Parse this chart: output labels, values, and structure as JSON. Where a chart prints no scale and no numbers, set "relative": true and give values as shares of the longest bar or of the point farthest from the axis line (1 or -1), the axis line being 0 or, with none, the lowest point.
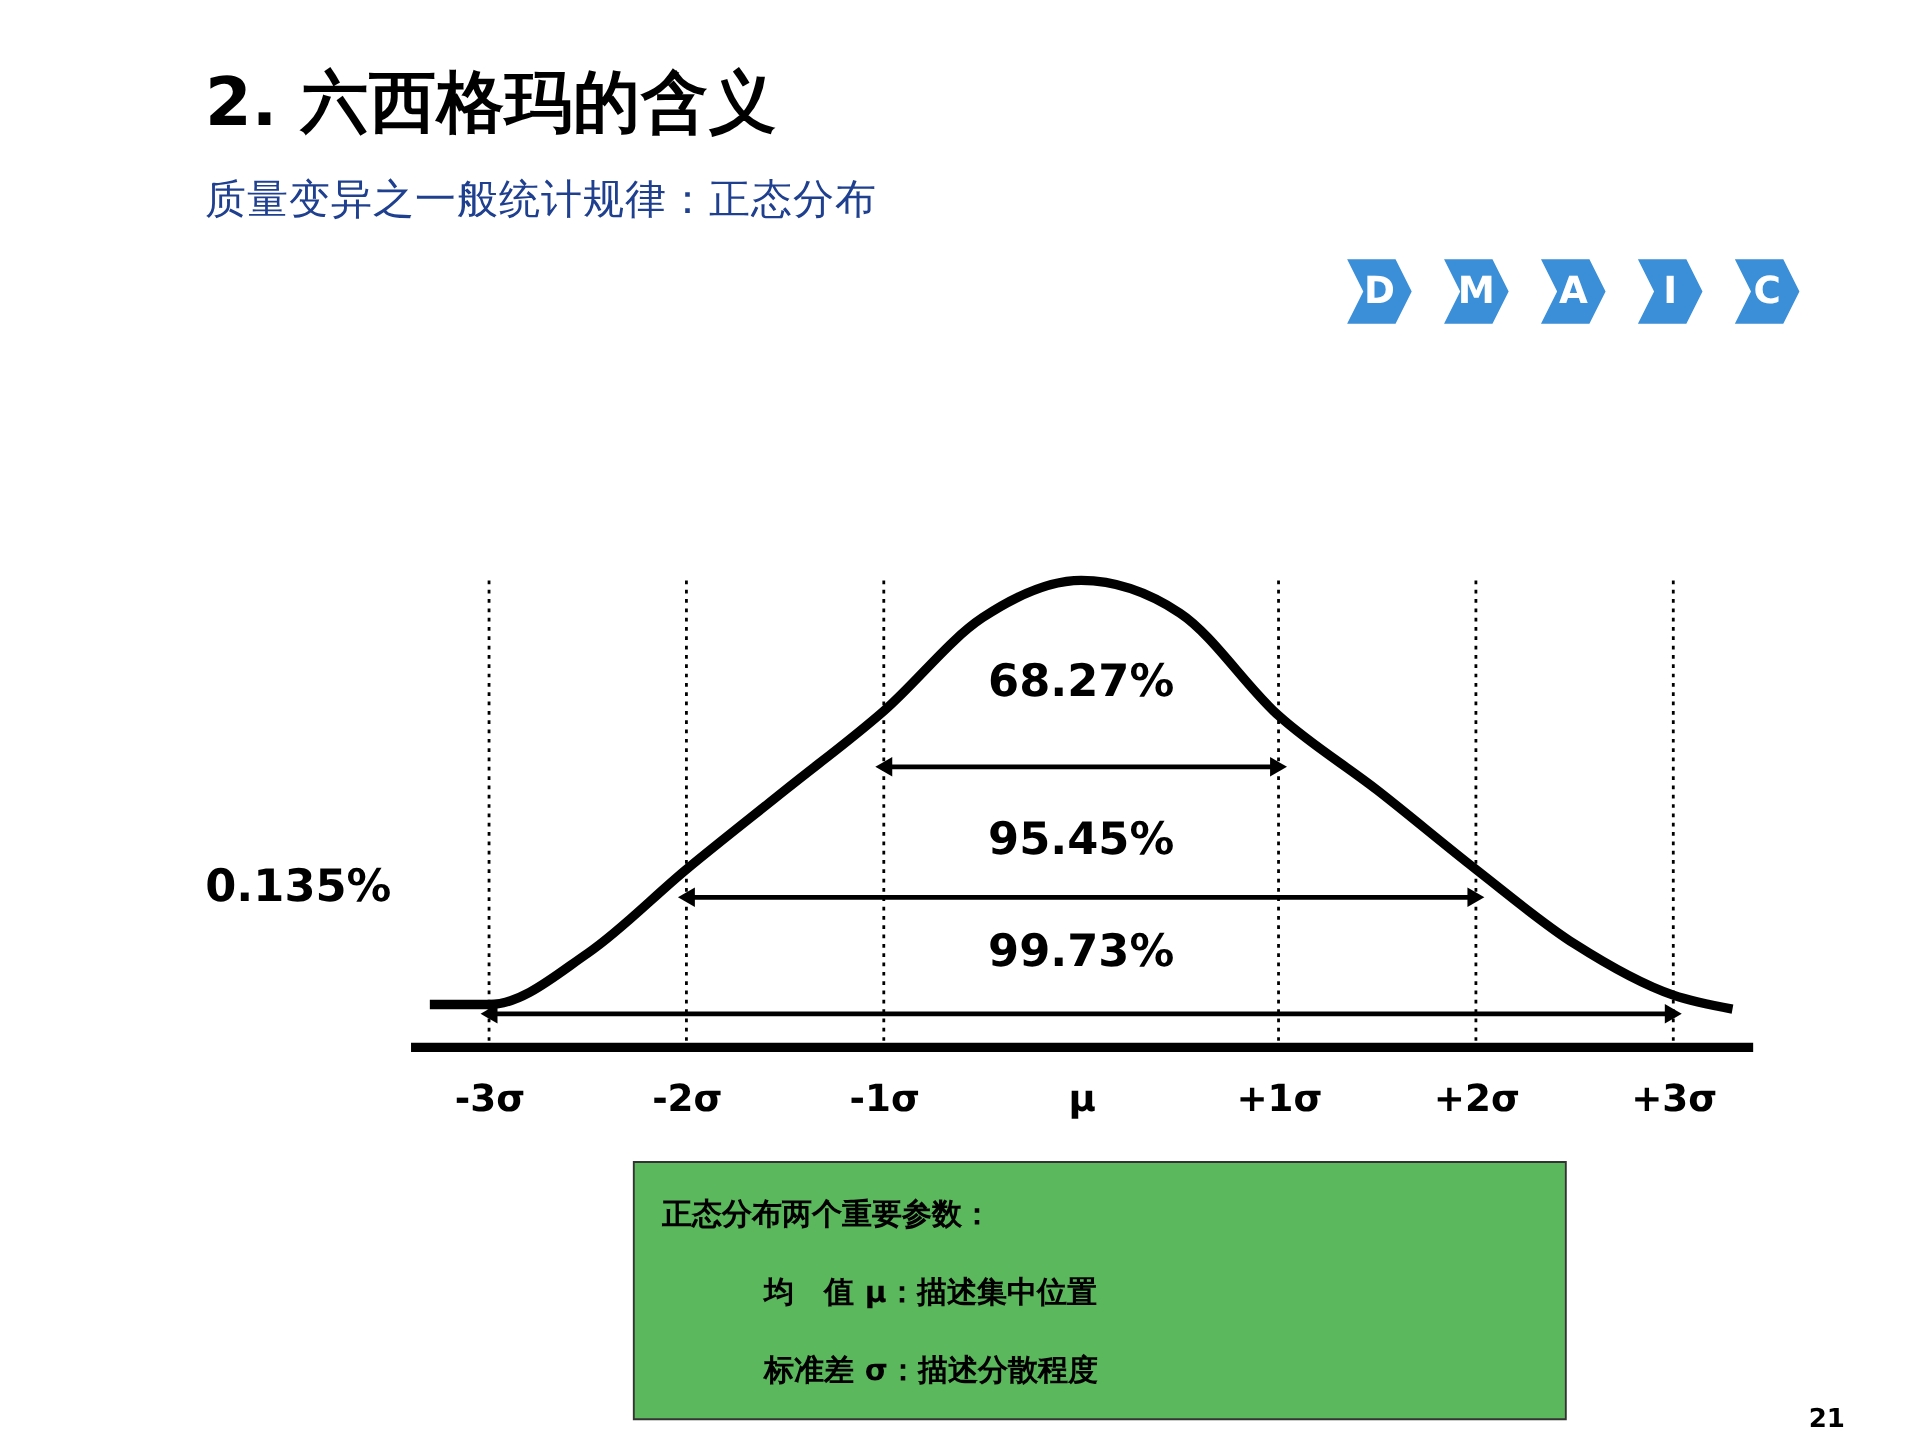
{
  "chart_data": {
    "type": "line",
    "title": "2.  六西格玛的含义",
    "subtitle": "质量变异之一般统计规律：正态分布",
    "relative": true,
    "x": [
      -3.3,
      -3,
      -2.5,
      -2,
      -1.5,
      -1,
      -0.5,
      0,
      0.5,
      1,
      1.5,
      2,
      2.5,
      3,
      3.3
    ],
    "series": [
      {
        "color": "#000000",
        "values": [
          0.09,
          0.09,
          0.2,
          0.38,
          0.55,
          0.72,
          0.92,
          1.0,
          0.93,
          0.71,
          0.55,
          0.38,
          0.22,
          0.11,
          0.08
        ]
      },
      {
        "color": "#000000",
        "x": [
          -1,
          1
        ],
        "values": [
          0.6,
          0.6
        ],
        "marker": "triangle"
      },
      {
        "color": "#000000",
        "x": [
          -2,
          2
        ],
        "values": [
          0.32,
          0.32
        ],
        "marker": "triangle"
      },
      {
        "color": "#000000",
        "x": [
          -3,
          3
        ],
        "values": [
          0.07,
          0.07
        ],
        "marker": "triangle"
      }
    ],
    "xlim": [
      -3.4,
      3.4
    ],
    "xticks": [
      {
        "value": -3,
        "label": "-3σ"
      },
      {
        "value": -2,
        "label": "-2σ"
      },
      {
        "value": -1,
        "label": "-1σ"
      },
      {
        "value": 0,
        "label": "μ"
      },
      {
        "value": 1,
        "label": "+1σ"
      },
      {
        "value": 2,
        "label": "+2σ"
      },
      {
        "value": 3,
        "label": "+3σ"
      }
    ],
    "ref_lines": [
      {
        "axis": "x",
        "value": -3,
        "line_style": "dotted"
      },
      {
        "axis": "x",
        "value": -2,
        "line_style": "dotted"
      },
      {
        "axis": "x",
        "value": -1,
        "line_style": "dotted"
      },
      {
        "axis": "x",
        "value": 1,
        "line_style": "dotted"
      },
      {
        "axis": "x",
        "value": 2,
        "line_style": "dotted"
      },
      {
        "axis": "x",
        "value": 3,
        "line_style": "dotted"
      }
    ],
    "annotations": [
      "68.27%",
      "95.45%",
      "99.73%",
      "0.135%",
      "D",
      "M",
      "A",
      "I",
      "C",
      "正态分布两个重要参数：",
      "均　值 μ：描述集中位置",
      "标准差 σ：描述分散程度",
      "21"
    ],
    "grid": false
  }
}
